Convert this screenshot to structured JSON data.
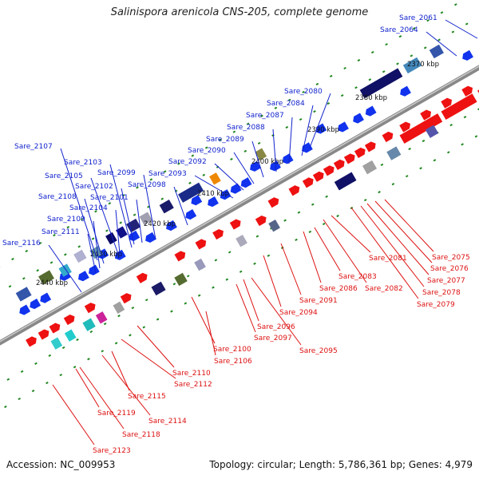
{
  "title": "Salinispora arenicola CNS-205, complete genome",
  "accession": "Accession: NC_009953",
  "topology": "Topology: circular; Length: 5,786,361 bp; Genes: 4,979",
  "colors": {
    "forward_gene": "#1133ee",
    "reverse_gene": "#ee1111",
    "label_forward": "#1122cc",
    "label_reverse": "#dd1111",
    "backbone": "#888888",
    "tick": "#228822"
  },
  "scale_labels": [
    "2370 kbp",
    "2380 kbp",
    "2390 kbp",
    "2400 kbp",
    "2410 kbp",
    "2420 kbp",
    "2430 kbp",
    "2440 kbp"
  ],
  "labels_forward": [
    "Sare_2061",
    "Sare_2064",
    "Sare_2080",
    "Sare_2084",
    "Sare_2087",
    "Sare_2088",
    "Sare_2089",
    "Sare_2090",
    "Sare_2092",
    "Sare_2093",
    "Sare_2098",
    "Sare_2099",
    "Sare_2101",
    "Sare_2102",
    "Sare_2103",
    "Sare_2104",
    "Sare_2105",
    "Sare_2107",
    "Sare_2108",
    "Sare_2109",
    "Sare_2111",
    "Sare_2116"
  ],
  "labels_reverse": [
    "Sare_2075",
    "Sare_2076",
    "Sare_2077",
    "Sare_2078",
    "Sare_2079",
    "Sare_2081",
    "Sare_2082",
    "Sare_2083",
    "Sare_2086",
    "Sare_2091",
    "Sare_2094",
    "Sare_2095",
    "Sare_2096",
    "Sare_2097",
    "Sare_2100",
    "Sare_2106",
    "Sare_2110",
    "Sare_2112",
    "Sare_2114",
    "Sare_2115",
    "Sare_2118",
    "Sare_2119",
    "Sare_2123"
  ]
}
